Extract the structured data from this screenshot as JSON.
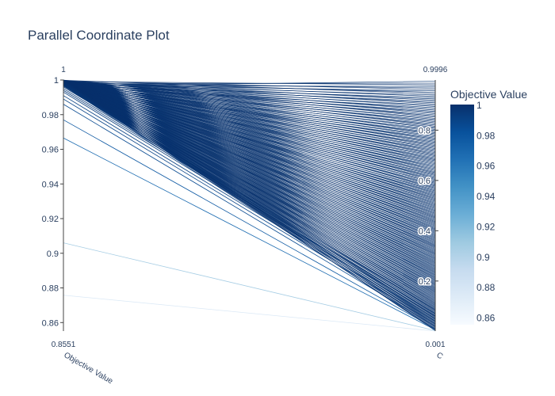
{
  "chart_data": {
    "type": "parallel_coordinates",
    "title": "Parallel Coordinate Plot",
    "dimensions": [
      {
        "label": "Objective Value",
        "range": [
          0.8551,
          1
        ],
        "range_labels": {
          "min": "0.8551",
          "max": "1"
        },
        "ticks": [
          "0.86",
          "0.88",
          "0.9",
          "0.92",
          "0.94",
          "0.96",
          "0.98",
          "1"
        ]
      },
      {
        "label": "C",
        "range": [
          0.001,
          0.9996
        ],
        "range_labels": {
          "min": "0.001",
          "max": "0.9996"
        },
        "ticks": [
          "0.2",
          "0.4",
          "0.6",
          "0.8"
        ]
      }
    ],
    "colorbar": {
      "title": "Objective Value",
      "range": [
        0.8551,
        1
      ],
      "ticks": [
        "0.86",
        "0.88",
        "0.9",
        "0.92",
        "0.94",
        "0.96",
        "0.98",
        "1"
      ],
      "colorscale": [
        "#f7fbff",
        "#deebf7",
        "#c6dbef",
        "#9ecae1",
        "#6baed6",
        "#4292c6",
        "#2171b5",
        "#08519c",
        "#08306b"
      ]
    },
    "lines": [
      [
        0.8758,
        0.001
      ],
      [
        0.906,
        0.003
      ],
      [
        0.9665,
        0.006
      ],
      [
        0.977,
        0.01
      ],
      [
        0.986,
        0.02
      ],
      [
        0.989,
        0.03
      ],
      [
        0.991,
        0.04
      ],
      [
        0.993,
        0.05
      ],
      [
        0.994,
        0.06
      ],
      [
        0.995,
        0.07
      ],
      [
        0.996,
        0.085
      ]
    ]
  }
}
